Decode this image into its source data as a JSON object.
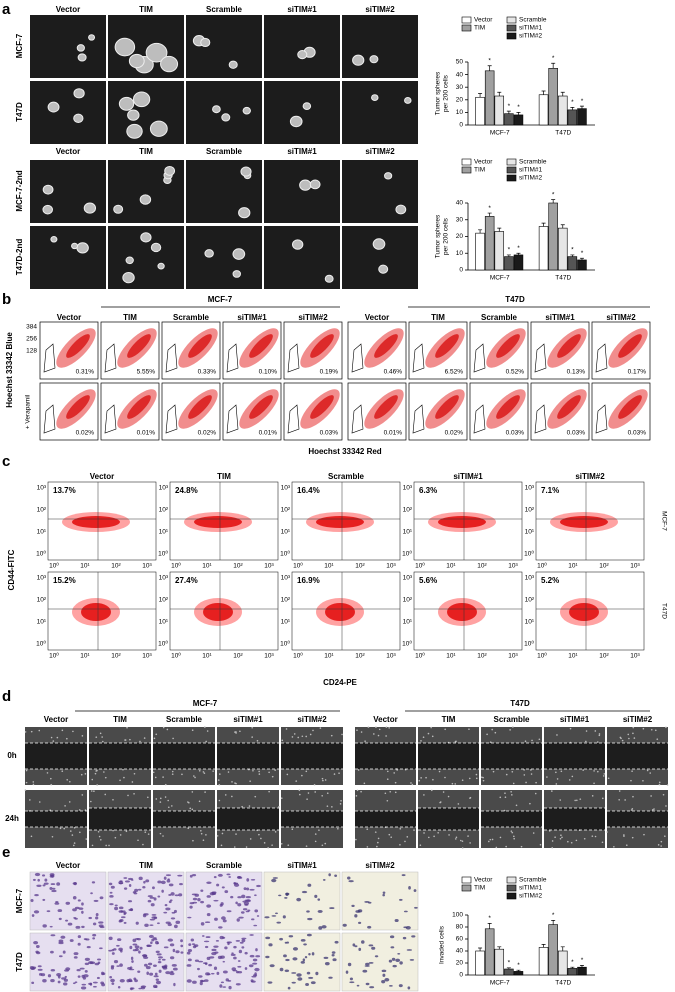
{
  "panel_a": {
    "label": "a",
    "columns": [
      "Vector",
      "TIM",
      "Scramble",
      "siTIM#1",
      "siTIM#2"
    ],
    "rows_1": [
      "MCF-7",
      "T47D"
    ],
    "rows_2": [
      "MCF-7-2nd",
      "T47D-2nd"
    ]
  },
  "panel_b": {
    "label": "b",
    "groups": [
      "MCF-7",
      "T47D"
    ],
    "columns": [
      "Vector",
      "TIM",
      "Scramble",
      "siTIM#1",
      "siTIM#2"
    ],
    "y_label": "Hoechst 33342 Blue",
    "row_label": "+ Verapamil",
    "x_label": "Hoechst 33342 Red",
    "axis_ticks": [
      384,
      256,
      128
    ],
    "percents_top": [
      [
        "0.31%",
        "5.55%",
        "0.33%",
        "0.10%",
        "0.19%"
      ],
      [
        "0.46%",
        "6.52%",
        "0.52%",
        "0.13%",
        "0.17%"
      ]
    ],
    "percents_verapamil": [
      [
        "0.02%",
        "0.01%",
        "0.02%",
        "0.01%",
        "0.03%"
      ],
      [
        "0.01%",
        "0.02%",
        "0.03%",
        "0.03%",
        "0.03%"
      ]
    ]
  },
  "panel_c": {
    "label": "c",
    "columns": [
      "Vector",
      "TIM",
      "Scramble",
      "siTIM#1",
      "siTIM#2"
    ],
    "rows": [
      "MCF-7",
      "T47D"
    ],
    "y_label": "CD44-FITC",
    "x_label": "CD24-PE",
    "ticks": [
      "10⁰",
      "10¹",
      "10²",
      "10³"
    ],
    "percents": [
      [
        "13.7%",
        "24.8%",
        "16.4%",
        "6.3%",
        "7.1%"
      ],
      [
        "15.2%",
        "27.4%",
        "16.9%",
        "5.6%",
        "5.2%"
      ]
    ]
  },
  "panel_d": {
    "label": "d",
    "groups": [
      "MCF-7",
      "T47D"
    ],
    "columns": [
      "Vector",
      "TIM",
      "Scramble",
      "siTIM#1",
      "siTIM#2"
    ],
    "rows": [
      "0h",
      "24h"
    ]
  },
  "panel_e": {
    "label": "e",
    "columns": [
      "Vector",
      "TIM",
      "Scramble",
      "siTIM#1",
      "siTIM#2"
    ],
    "rows": [
      "MCF-7",
      "T47D"
    ]
  },
  "chart_data": [
    {
      "type": "bar",
      "y_label": [
        "Tumor spheres",
        "per 200 cells"
      ],
      "categories": [
        "MCF-7",
        "T47D"
      ],
      "ylim": [
        0,
        50
      ],
      "yticks": [
        0,
        10,
        20,
        30,
        40,
        50
      ],
      "series": [
        {
          "name": "Vector",
          "color": "#ffffff",
          "values": [
            22,
            24
          ],
          "errors": [
            3,
            3
          ]
        },
        {
          "name": "TIM",
          "color": "#a0a0a0",
          "values": [
            43,
            45
          ],
          "errors": [
            4,
            4
          ],
          "annotations": [
            "*",
            "*"
          ]
        },
        {
          "name": "Scramble",
          "color": "#e6e6e6",
          "values": [
            23,
            23
          ],
          "errors": [
            3,
            3
          ]
        },
        {
          "name": "siTIM#1",
          "color": "#555555",
          "values": [
            9,
            12
          ],
          "errors": [
            2,
            2
          ],
          "annotations": [
            "*",
            "*"
          ]
        },
        {
          "name": "siTIM#2",
          "color": "#1a1a1a",
          "values": [
            8,
            13
          ],
          "errors": [
            2,
            2
          ],
          "annotations": [
            "*",
            "*"
          ]
        }
      ]
    },
    {
      "type": "bar",
      "y_label": [
        "Tumor spheres",
        "per 200 cells"
      ],
      "categories": [
        "MCF-7",
        "T47D"
      ],
      "ylim": [
        0,
        40
      ],
      "yticks": [
        0,
        10,
        20,
        30,
        40
      ],
      "series": [
        {
          "name": "Vector",
          "color": "#ffffff",
          "values": [
            22,
            26
          ],
          "errors": [
            2,
            2
          ]
        },
        {
          "name": "TIM",
          "color": "#a0a0a0",
          "values": [
            32,
            40
          ],
          "errors": [
            2,
            2
          ],
          "annotations": [
            "*",
            "*"
          ]
        },
        {
          "name": "Scramble",
          "color": "#e6e6e6",
          "values": [
            23,
            25
          ],
          "errors": [
            2,
            2
          ]
        },
        {
          "name": "siTIM#1",
          "color": "#555555",
          "values": [
            8,
            8
          ],
          "errors": [
            1,
            1
          ],
          "annotations": [
            "*",
            "*"
          ]
        },
        {
          "name": "siTIM#2",
          "color": "#1a1a1a",
          "values": [
            9,
            6
          ],
          "errors": [
            1,
            1
          ],
          "annotations": [
            "*",
            "*"
          ]
        }
      ]
    },
    {
      "type": "bar",
      "y_label": [
        "Invaded cells"
      ],
      "categories": [
        "MCF-7",
        "T47D"
      ],
      "ylim": [
        0,
        100
      ],
      "yticks": [
        0,
        20,
        40,
        60,
        80,
        100
      ],
      "series": [
        {
          "name": "Vector",
          "color": "#ffffff",
          "values": [
            40,
            46
          ],
          "errors": [
            5,
            5
          ]
        },
        {
          "name": "TIM",
          "color": "#a0a0a0",
          "values": [
            77,
            84
          ],
          "errors": [
            9,
            7
          ],
          "annotations": [
            "*",
            "*"
          ]
        },
        {
          "name": "Scramble",
          "color": "#e6e6e6",
          "values": [
            43,
            40
          ],
          "errors": [
            4,
            7
          ]
        },
        {
          "name": "siTIM#1",
          "color": "#555555",
          "values": [
            10,
            11
          ],
          "errors": [
            2,
            2
          ],
          "annotations": [
            "*",
            "*"
          ]
        },
        {
          "name": "siTIM#2",
          "color": "#1a1a1a",
          "values": [
            6,
            13
          ],
          "errors": [
            2,
            3
          ],
          "annotations": [
            "*",
            "*"
          ]
        }
      ]
    }
  ]
}
